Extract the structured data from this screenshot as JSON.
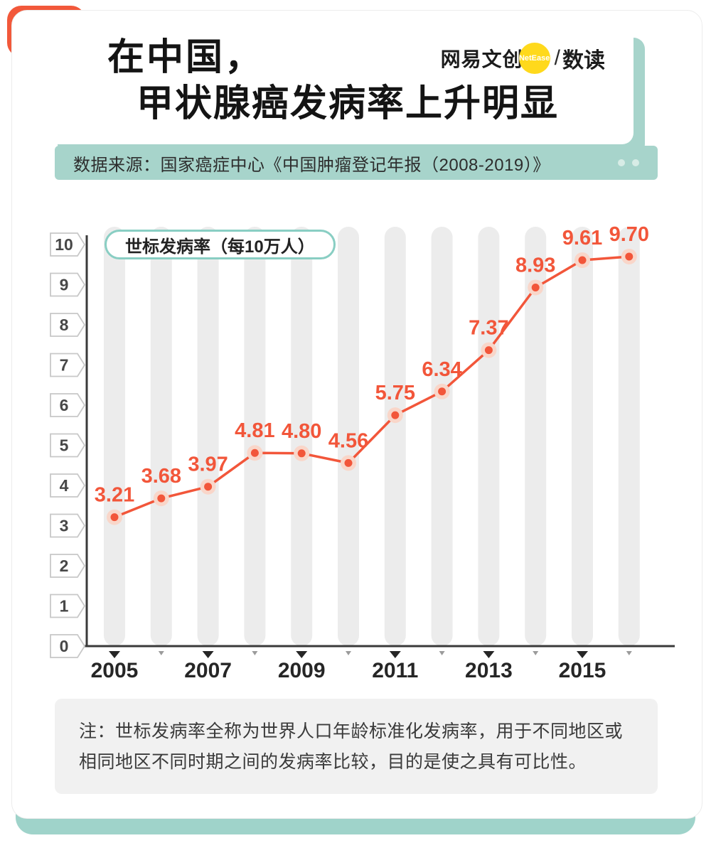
{
  "header": {
    "title_line1": "在中国，",
    "title_line2": "甲状腺癌发病率上升明显",
    "brand": {
      "name": "网易文创",
      "badge": "NetEase",
      "separator": "/",
      "sub": "数读"
    }
  },
  "source": {
    "text": "数据来源：国家癌症中心《中国肿瘤登记年报（2008-2019）》"
  },
  "chart_data": {
    "type": "line",
    "legend": "世标发病率（每10万人）",
    "x": [
      2005,
      2006,
      2007,
      2008,
      2009,
      2010,
      2011,
      2012,
      2013,
      2014,
      2015,
      2016
    ],
    "xtick_labels": [
      2005,
      2007,
      2009,
      2011,
      2013,
      2015
    ],
    "values": [
      3.21,
      3.68,
      3.97,
      4.81,
      4.8,
      4.56,
      5.75,
      6.34,
      7.37,
      8.93,
      9.61,
      9.7
    ],
    "value_labels": [
      "3.21",
      "3.68",
      "3.97",
      "4.81",
      "4.80",
      "4.56",
      "5.75",
      "6.34",
      "7.37",
      "8.93",
      "9.61",
      "9.70"
    ],
    "ylim": [
      0,
      10
    ],
    "yticks": [
      0,
      1,
      2,
      3,
      4,
      5,
      6,
      7,
      8,
      9,
      10
    ],
    "grid": "vertical-bands",
    "legend_position": "top-left",
    "colors": {
      "line": "#f2563a",
      "point": "#f2563a",
      "halo": "#f9d6c9",
      "label": "#f2563a",
      "band": "#ececec",
      "axis": "#3a3a3a"
    }
  },
  "note": {
    "text": "注：世标发病率全称为世界人口年龄标准化发病率，用于不同地区或相同地区不同时期之间的发病率比较，目的是使之具有可比性。"
  },
  "accent_colors": {
    "coral": "#f2583a",
    "teal": "#a7d4cb",
    "badge_yellow": "#ffd91c"
  }
}
